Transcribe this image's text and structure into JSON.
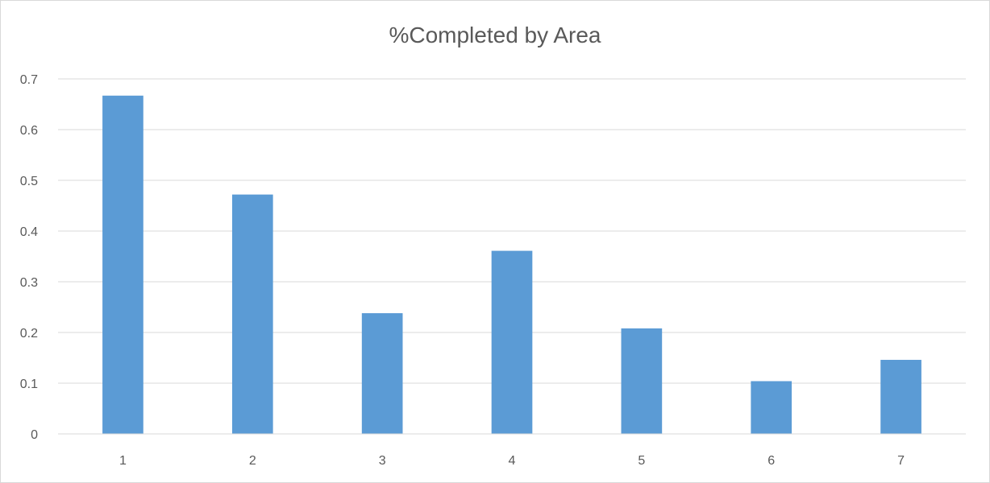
{
  "chart_data": {
    "type": "bar",
    "title": "%Completed by Area",
    "xlabel": "",
    "ylabel": "",
    "categories": [
      "1",
      "2",
      "3",
      "4",
      "5",
      "6",
      "7"
    ],
    "values": [
      0.667,
      0.472,
      0.238,
      0.361,
      0.208,
      0.104,
      0.146
    ],
    "ylim": [
      0,
      0.7
    ],
    "yticks": [
      "0",
      "0.1",
      "0.2",
      "0.3",
      "0.4",
      "0.5",
      "0.6",
      "0.7"
    ],
    "grid": true,
    "legend": "none",
    "bar_color": "#5b9bd5",
    "grid_color": "#d9d9d9",
    "text_color": "#595959"
  }
}
